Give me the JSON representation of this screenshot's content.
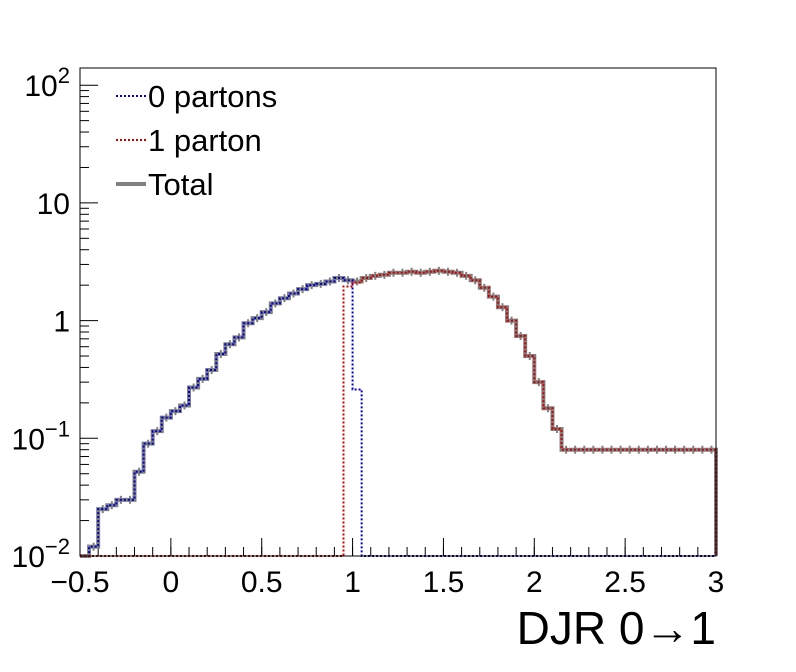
{
  "chart_data": {
    "type": "line",
    "title": "",
    "xlabel": "DJR 0→1",
    "ylabel": "",
    "xlim": [
      -0.5,
      3.0
    ],
    "ylim": [
      0.01,
      140
    ],
    "yscale": "log",
    "grid": false,
    "legend_position": "top-left",
    "bin_edges": [
      -0.5,
      -0.45,
      -0.4,
      -0.35,
      -0.3,
      -0.25,
      -0.2,
      -0.15,
      -0.1,
      -0.05,
      0.0,
      0.05,
      0.1,
      0.15,
      0.2,
      0.25,
      0.3,
      0.35,
      0.4,
      0.45,
      0.5,
      0.55,
      0.6,
      0.65,
      0.7,
      0.75,
      0.8,
      0.85,
      0.9,
      0.95,
      1.0,
      1.05,
      1.1,
      1.15,
      1.2,
      1.25,
      1.3,
      1.35,
      1.4,
      1.45,
      1.5,
      1.55,
      1.6,
      1.65,
      1.7,
      1.75,
      1.8,
      1.85,
      1.9,
      1.95,
      2.0,
      2.05,
      2.1,
      2.15,
      2.2,
      2.25,
      2.3,
      2.35,
      2.4,
      2.45,
      2.5,
      2.55,
      2.6,
      2.65,
      2.7,
      2.75,
      2.8,
      2.85,
      2.9,
      2.95,
      3.0
    ],
    "series": [
      {
        "name": "0 partons",
        "color": "#0000cc",
        "style": "dotted",
        "values": [
          0.01,
          0.012,
          0.025,
          0.027,
          0.03,
          0.03,
          0.052,
          0.09,
          0.115,
          0.15,
          0.17,
          0.19,
          0.27,
          0.32,
          0.38,
          0.52,
          0.63,
          0.72,
          0.95,
          1.05,
          1.18,
          1.4,
          1.55,
          1.7,
          1.85,
          2.0,
          2.05,
          2.15,
          2.3,
          2.2,
          0.26,
          0.01,
          0.01,
          0.01,
          0.01,
          0.01,
          0.01,
          0.01,
          0.01,
          0.01,
          0.01,
          0.01,
          0.01,
          0.01,
          0.01,
          0.01,
          0.01,
          0.01,
          0.01,
          0.01,
          0.01,
          0.01,
          0.01,
          0.01,
          0.01,
          0.01,
          0.01,
          0.01,
          0.01,
          0.01,
          0.01,
          0.01,
          0.01,
          0.01,
          0.01,
          0.01,
          0.01,
          0.01,
          0.01,
          0.01
        ]
      },
      {
        "name": "1 parton",
        "color": "#cc0000",
        "style": "dotted",
        "values": [
          0.01,
          0.01,
          0.01,
          0.01,
          0.01,
          0.01,
          0.01,
          0.01,
          0.01,
          0.01,
          0.01,
          0.01,
          0.01,
          0.01,
          0.01,
          0.01,
          0.01,
          0.01,
          0.01,
          0.01,
          0.01,
          0.01,
          0.01,
          0.01,
          0.01,
          0.01,
          0.01,
          0.01,
          0.01,
          1.95,
          2.1,
          2.3,
          2.4,
          2.45,
          2.55,
          2.55,
          2.6,
          2.55,
          2.6,
          2.65,
          2.6,
          2.55,
          2.4,
          2.2,
          1.9,
          1.6,
          1.3,
          1.0,
          0.74,
          0.5,
          0.3,
          0.18,
          0.12,
          0.08,
          0.08,
          0.08,
          0.08,
          0.08,
          0.08,
          0.08,
          0.08,
          0.08,
          0.08,
          0.08,
          0.08,
          0.08,
          0.08,
          0.08,
          0.08,
          0.08
        ]
      },
      {
        "name": "Total",
        "color": "#808080",
        "style": "solid",
        "values": [
          0.01,
          0.012,
          0.025,
          0.027,
          0.03,
          0.03,
          0.052,
          0.09,
          0.115,
          0.15,
          0.17,
          0.19,
          0.27,
          0.32,
          0.38,
          0.52,
          0.63,
          0.72,
          0.95,
          1.05,
          1.18,
          1.4,
          1.55,
          1.7,
          1.85,
          2.0,
          2.05,
          2.15,
          2.3,
          2.2,
          2.15,
          2.3,
          2.4,
          2.45,
          2.55,
          2.55,
          2.6,
          2.55,
          2.6,
          2.65,
          2.6,
          2.55,
          2.4,
          2.2,
          1.9,
          1.6,
          1.3,
          1.0,
          0.74,
          0.5,
          0.3,
          0.18,
          0.12,
          0.08,
          0.08,
          0.08,
          0.08,
          0.08,
          0.08,
          0.08,
          0.08,
          0.08,
          0.08,
          0.08,
          0.08,
          0.08,
          0.08,
          0.08,
          0.08,
          0.08
        ]
      }
    ],
    "x_ticks": [
      {
        "value": -0.5,
        "label": "−0.5"
      },
      {
        "value": 0,
        "label": "0"
      },
      {
        "value": 0.5,
        "label": "0.5"
      },
      {
        "value": 1,
        "label": "1"
      },
      {
        "value": 1.5,
        "label": "1.5"
      },
      {
        "value": 2,
        "label": "2"
      },
      {
        "value": 2.5,
        "label": "2.5"
      },
      {
        "value": 3,
        "label": "3"
      }
    ],
    "y_ticks": [
      {
        "value": 0.01,
        "base": "10",
        "exp": "−2"
      },
      {
        "value": 0.1,
        "base": "10",
        "exp": "−1"
      },
      {
        "value": 1,
        "base": "1",
        "exp": ""
      },
      {
        "value": 10,
        "base": "10",
        "exp": ""
      },
      {
        "value": 100,
        "base": "10",
        "exp": "2"
      }
    ]
  }
}
